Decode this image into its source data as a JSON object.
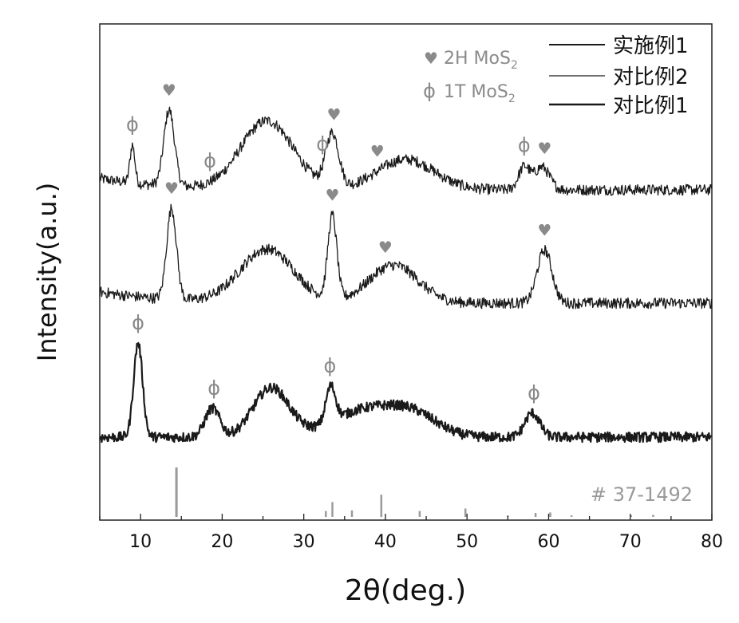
{
  "chart_data": {
    "type": "line",
    "title": "",
    "xlabel": "2θ(deg.)",
    "ylabel": "Intensity(a.u.)",
    "xlim": [
      5,
      80
    ],
    "xticks": [
      10,
      20,
      30,
      40,
      50,
      60,
      70,
      80
    ],
    "y_tick_labels": false,
    "legend_placement": "top-right",
    "legend": [
      "实施例1",
      "对比例2",
      "对比例1"
    ],
    "marker_legend": [
      {
        "symbol": "♥",
        "label_main": "2H MoS",
        "label_sub": "2"
      },
      {
        "symbol": "ϕ",
        "label_main": "1T MoS",
        "label_sub": "2"
      }
    ],
    "colors": {
      "line": "#1a1a1a",
      "annotation": "#8a8a8a",
      "reference": "#9a9a9a"
    },
    "series": [
      {
        "name": "实施例1",
        "baseline": 0.15,
        "noise": 0.018,
        "peaks": [
          {
            "center": 9.0,
            "height": 0.5,
            "width": 0.3
          },
          {
            "center": 13.5,
            "height": 1.0,
            "width": 0.65
          },
          {
            "center": 25.5,
            "height": 0.9,
            "width": 3.2
          },
          {
            "center": 33.5,
            "height": 0.7,
            "width": 0.8
          },
          {
            "center": 42.5,
            "height": 0.4,
            "width": 3.5
          },
          {
            "center": 57.0,
            "height": 0.3,
            "width": 0.7
          },
          {
            "center": 59.2,
            "height": 0.3,
            "width": 0.9
          }
        ],
        "annotations": [
          {
            "x": 9.0,
            "symbol": "ϕ"
          },
          {
            "x": 13.5,
            "symbol": "♥"
          },
          {
            "x": 18.5,
            "symbol": "ϕ"
          },
          {
            "x": 32.3,
            "symbol": "ϕ"
          },
          {
            "x": 33.7,
            "symbol": "♥"
          },
          {
            "x": 39.0,
            "symbol": "♥"
          },
          {
            "x": 57.0,
            "symbol": "ϕ"
          },
          {
            "x": 59.5,
            "symbol": "♥"
          }
        ]
      },
      {
        "name": "对比例2",
        "baseline": 0.15,
        "noise": 0.018,
        "peaks": [
          {
            "center": 13.8,
            "height": 1.2,
            "width": 0.6
          },
          {
            "center": 25.5,
            "height": 0.7,
            "width": 3.3
          },
          {
            "center": 33.5,
            "height": 1.1,
            "width": 0.55
          },
          {
            "center": 41.0,
            "height": 0.5,
            "width": 3.0
          },
          {
            "center": 59.5,
            "height": 0.7,
            "width": 0.9
          }
        ],
        "annotations": [
          {
            "x": 13.8,
            "symbol": "♥"
          },
          {
            "x": 33.5,
            "symbol": "♥"
          },
          {
            "x": 40.0,
            "symbol": "♥"
          },
          {
            "x": 59.5,
            "symbol": "♥"
          }
        ]
      },
      {
        "name": "对比例1",
        "baseline": 0.0,
        "noise": 0.014,
        "peaks": [
          {
            "center": 9.7,
            "height": 1.05,
            "width": 0.55
          },
          {
            "center": 18.8,
            "height": 0.32,
            "width": 0.9
          },
          {
            "center": 26.0,
            "height": 0.55,
            "width": 2.2
          },
          {
            "center": 33.3,
            "height": 0.4,
            "width": 0.6
          },
          {
            "center": 37.5,
            "height": 0.3,
            "width": 4.0
          },
          {
            "center": 43.5,
            "height": 0.22,
            "width": 3.0
          },
          {
            "center": 58.0,
            "height": 0.27,
            "width": 0.9
          }
        ],
        "annotations": [
          {
            "x": 9.7,
            "symbol": "ϕ"
          },
          {
            "x": 19.0,
            "symbol": "ϕ"
          },
          {
            "x": 33.2,
            "symbol": "ϕ"
          },
          {
            "x": 58.2,
            "symbol": "ϕ"
          }
        ]
      }
    ],
    "reference_pattern": {
      "label": "# 37-1492",
      "sticks": [
        {
          "x": 14.4,
          "intensity": 1.0
        },
        {
          "x": 32.7,
          "intensity": 0.12
        },
        {
          "x": 33.5,
          "intensity": 0.3
        },
        {
          "x": 35.9,
          "intensity": 0.13
        },
        {
          "x": 39.5,
          "intensity": 0.45
        },
        {
          "x": 44.2,
          "intensity": 0.12
        },
        {
          "x": 49.8,
          "intensity": 0.17
        },
        {
          "x": 55.0,
          "intensity": 0.03
        },
        {
          "x": 58.4,
          "intensity": 0.08
        },
        {
          "x": 60.2,
          "intensity": 0.09
        },
        {
          "x": 62.8,
          "intensity": 0.03
        },
        {
          "x": 70.1,
          "intensity": 0.03
        },
        {
          "x": 72.8,
          "intensity": 0.04
        }
      ]
    }
  }
}
